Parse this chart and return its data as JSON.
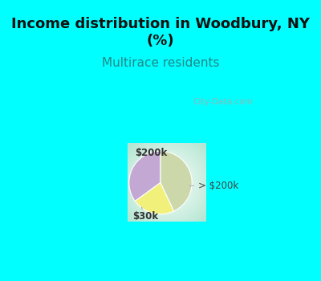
{
  "title": "Income distribution in Woodbury, NY\n(%)",
  "subtitle": "Multirace residents",
  "title_color": "#111111",
  "subtitle_color": "#228888",
  "bg_cyan": "#00ffff",
  "slices": [
    {
      "label": "> $200k",
      "value": 35,
      "color": "#c4a8d4"
    },
    {
      "label": "$200k",
      "value": 22,
      "color": "#f0f07a"
    },
    {
      "label": "$30k",
      "value": 43,
      "color": "#ccd8aa"
    }
  ],
  "startangle": 90,
  "figsize": [
    4.0,
    3.5
  ],
  "dpi": 100,
  "title_fontsize": 13,
  "subtitle_fontsize": 11,
  "annotation_fontsize": 8.5
}
